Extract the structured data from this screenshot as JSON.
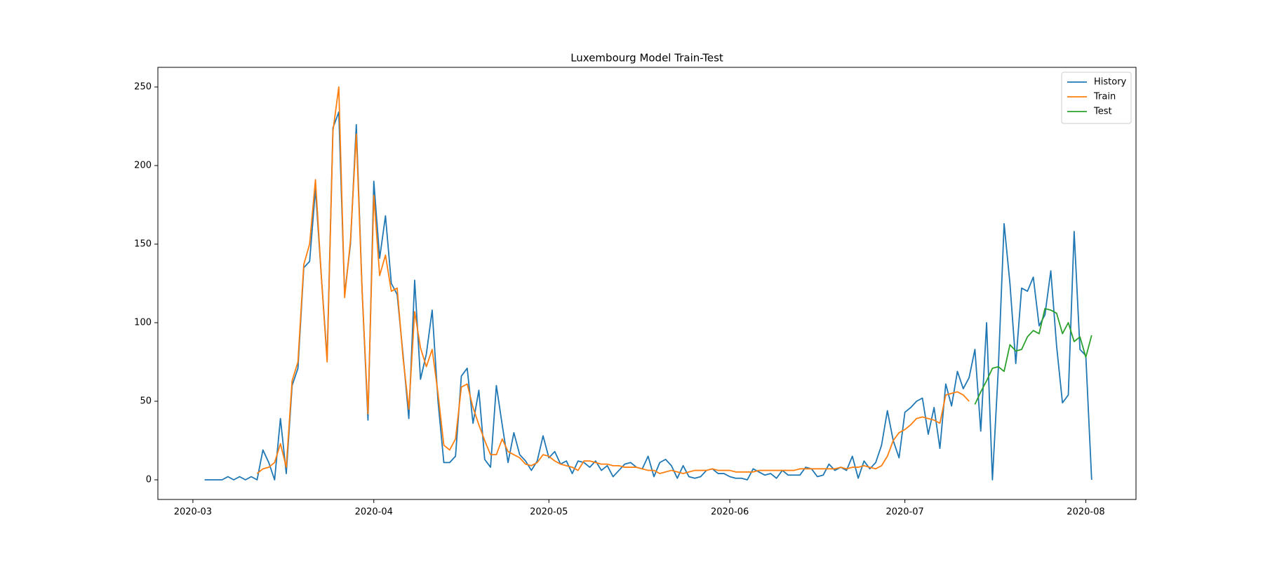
{
  "chart_data": {
    "type": "line",
    "title": "Luxembourg Model Train-Test",
    "xlim": [
      55,
      222.6
    ],
    "xticks": [
      {
        "value": 61,
        "label": "2020-03"
      },
      {
        "value": 92,
        "label": "2020-04"
      },
      {
        "value": 122,
        "label": "2020-05"
      },
      {
        "value": 153,
        "label": "2020-06"
      },
      {
        "value": 183,
        "label": "2020-07"
      },
      {
        "value": 214,
        "label": "2020-08"
      }
    ],
    "ylim": [
      -12.5,
      262.5
    ],
    "yticks": [
      0,
      50,
      100,
      150,
      200,
      250
    ],
    "legend": "upper right",
    "series": [
      {
        "name": "History",
        "color": "#1f77b4",
        "x": [
          63,
          64,
          65,
          66,
          67,
          68,
          69,
          70,
          71,
          72,
          73,
          74,
          75,
          76,
          77,
          78,
          79,
          80,
          81,
          82,
          83,
          84,
          85,
          86,
          87,
          88,
          89,
          90,
          91,
          92,
          93,
          94,
          95,
          96,
          97,
          98,
          99,
          100,
          101,
          102,
          103,
          104,
          105,
          106,
          107,
          108,
          109,
          110,
          111,
          112,
          113,
          114,
          115,
          116,
          117,
          118,
          119,
          120,
          121,
          122,
          123,
          124,
          125,
          126,
          127,
          128,
          129,
          130,
          131,
          132,
          133,
          134,
          135,
          136,
          137,
          138,
          139,
          140,
          141,
          142,
          143,
          144,
          145,
          146,
          147,
          148,
          149,
          150,
          151,
          152,
          153,
          154,
          155,
          156,
          157,
          158,
          159,
          160,
          161,
          162,
          163,
          164,
          165,
          166,
          167,
          168,
          169,
          170,
          171,
          172,
          173,
          174,
          175,
          176,
          177,
          178,
          179,
          180,
          181,
          182,
          183,
          184,
          185,
          186,
          187,
          188,
          189,
          190,
          191,
          192,
          193,
          194,
          195,
          196,
          197,
          198,
          199,
          200,
          201,
          202,
          203,
          204,
          205,
          206,
          207,
          208,
          209,
          210,
          211,
          212,
          213,
          214,
          215
        ],
        "values": [
          0,
          0,
          0,
          0,
          2,
          0,
          2,
          0,
          2,
          0,
          19,
          11,
          0,
          39,
          4,
          60,
          71,
          135,
          139,
          185,
          130,
          77,
          224,
          234,
          118,
          150,
          226,
          120,
          38,
          190,
          141,
          168,
          125,
          118,
          80,
          39,
          127,
          64,
          80,
          108,
          50,
          11,
          11,
          15,
          66,
          71,
          36,
          57,
          13,
          8,
          60,
          35,
          11,
          30,
          16,
          12,
          6,
          12,
          28,
          14,
          18,
          10,
          12,
          4,
          12,
          11,
          8,
          12,
          6,
          9,
          2,
          6,
          10,
          11,
          8,
          7,
          15,
          2,
          11,
          13,
          9,
          1,
          9,
          2,
          1,
          2,
          6,
          7,
          4,
          4,
          2,
          1,
          1,
          0,
          7,
          5,
          3,
          4,
          1,
          6,
          3,
          3,
          3,
          8,
          7,
          2,
          3,
          10,
          6,
          8,
          6,
          15,
          1,
          12,
          7,
          11,
          22,
          44,
          25,
          14,
          43,
          46,
          50,
          52,
          29,
          46,
          20,
          61,
          47,
          69,
          58,
          65,
          83,
          31,
          100,
          0,
          70,
          163,
          125,
          74,
          122,
          120,
          129,
          98,
          105,
          133,
          85,
          49,
          54,
          158,
          83,
          79,
          0
        ]
      },
      {
        "name": "Train",
        "color": "#ff7f0e",
        "x": [
          72,
          73,
          74,
          75,
          76,
          77,
          78,
          79,
          80,
          81,
          82,
          83,
          84,
          85,
          86,
          87,
          88,
          89,
          90,
          91,
          92,
          93,
          94,
          95,
          96,
          97,
          98,
          99,
          100,
          101,
          102,
          103,
          104,
          105,
          106,
          107,
          108,
          109,
          110,
          111,
          112,
          113,
          114,
          115,
          116,
          117,
          118,
          119,
          120,
          121,
          122,
          123,
          124,
          125,
          126,
          127,
          128,
          129,
          130,
          131,
          132,
          133,
          134,
          135,
          136,
          137,
          138,
          139,
          140,
          141,
          142,
          143,
          144,
          145,
          146,
          147,
          148,
          149,
          150,
          151,
          152,
          153,
          154,
          155,
          156,
          157,
          158,
          159,
          160,
          161,
          162,
          163,
          164,
          165,
          166,
          167,
          168,
          169,
          170,
          171,
          172,
          173,
          174,
          175,
          176,
          177,
          178,
          179,
          180,
          181,
          182,
          183,
          184,
          185,
          186,
          187,
          188,
          189,
          190,
          191,
          192,
          193,
          194
        ],
        "values": [
          4,
          7,
          8,
          11,
          23,
          8,
          63,
          75,
          137,
          150,
          191,
          130,
          75,
          222,
          250,
          116,
          152,
          220,
          120,
          42,
          181,
          130,
          143,
          120,
          122,
          78,
          45,
          107,
          84,
          72,
          83,
          55,
          22,
          19,
          26,
          59,
          61,
          46,
          35,
          25,
          16,
          16,
          26,
          18,
          16,
          14,
          10,
          9,
          11,
          16,
          15,
          12,
          10,
          9,
          8,
          6,
          12,
          12,
          11,
          10,
          10,
          9,
          9,
          8,
          8,
          8,
          7,
          6,
          6,
          4,
          5,
          6,
          5,
          4,
          5,
          6,
          6,
          6,
          7,
          6,
          6,
          6,
          5,
          5,
          5,
          5,
          6,
          6,
          6,
          6,
          6,
          6,
          6,
          7,
          7,
          7,
          7,
          7,
          7,
          7,
          8,
          7,
          8,
          8,
          9,
          8,
          7,
          9,
          15,
          25,
          30,
          32,
          35,
          39,
          40,
          39,
          38,
          36,
          54,
          55,
          56,
          54,
          50
        ]
      },
      {
        "name": "Test",
        "color": "#2ca02c",
        "x": [
          195,
          196,
          197,
          198,
          199,
          200,
          201,
          202,
          203,
          204,
          205,
          206,
          207,
          208,
          209,
          210,
          211,
          212,
          213,
          214,
          215
        ],
        "values": [
          48,
          56,
          63,
          71,
          72,
          69,
          86,
          82,
          83,
          91,
          95,
          93,
          109,
          108,
          106,
          93,
          100,
          88,
          91,
          78,
          92
        ]
      }
    ]
  }
}
